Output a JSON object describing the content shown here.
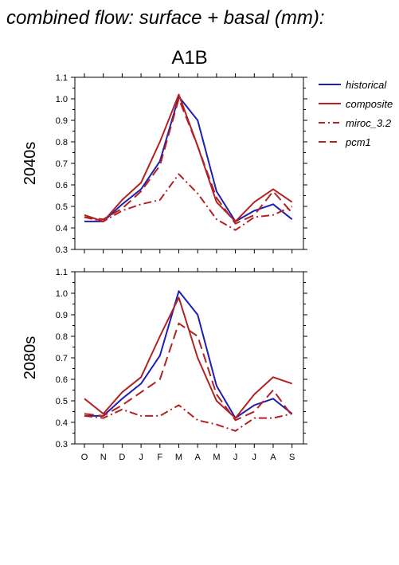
{
  "title": "combined flow: surface + basal (mm):",
  "scenario": "A1B",
  "colors": {
    "historical": "#1f1fb4",
    "composite": "#b22222",
    "miroc_3.2": "#b22222",
    "pcm1": "#b22222"
  },
  "legend": [
    {
      "key": "historical",
      "label": "historical",
      "dash": "solid"
    },
    {
      "key": "composite",
      "label": "composite",
      "dash": "solid"
    },
    {
      "key": "miroc_3.2",
      "label": "miroc_3.2",
      "dash": "dashdot"
    },
    {
      "key": "pcm1",
      "label": "pcm1",
      "dash": "dashed"
    }
  ],
  "chart_data": [
    {
      "type": "line",
      "panel": "2040s",
      "categories": [
        "O",
        "N",
        "D",
        "J",
        "F",
        "M",
        "A",
        "M",
        "J",
        "J",
        "A",
        "S"
      ],
      "ylim": [
        0.3,
        1.1
      ],
      "yticks": [
        "0.3",
        "0.4",
        "0.5",
        "0.6",
        "0.7",
        "0.8",
        "0.9",
        "1.0",
        "1.1"
      ],
      "series": [
        {
          "name": "historical",
          "values": [
            0.43,
            0.43,
            0.51,
            0.58,
            0.71,
            1.01,
            0.9,
            0.57,
            0.43,
            0.48,
            0.51,
            0.44
          ]
        },
        {
          "name": "composite",
          "values": [
            0.46,
            0.43,
            0.53,
            0.61,
            0.8,
            1.02,
            0.78,
            0.52,
            0.43,
            0.52,
            0.58,
            0.52
          ]
        },
        {
          "name": "miroc_3.2",
          "values": [
            0.45,
            0.43,
            0.48,
            0.51,
            0.53,
            0.65,
            0.56,
            0.44,
            0.39,
            0.45,
            0.46,
            0.5
          ]
        },
        {
          "name": "pcm1",
          "values": [
            0.45,
            0.44,
            0.49,
            0.57,
            0.69,
            1.0,
            0.78,
            0.54,
            0.42,
            0.46,
            0.57,
            0.47
          ]
        }
      ]
    },
    {
      "type": "line",
      "panel": "2080s",
      "categories": [
        "O",
        "N",
        "D",
        "J",
        "F",
        "M",
        "A",
        "M",
        "J",
        "J",
        "A",
        "S"
      ],
      "ylim": [
        0.3,
        1.1
      ],
      "yticks": [
        "0.3",
        "0.4",
        "0.5",
        "0.6",
        "0.7",
        "0.8",
        "0.9",
        "1.0",
        "1.1"
      ],
      "series": [
        {
          "name": "historical",
          "values": [
            0.43,
            0.43,
            0.51,
            0.58,
            0.71,
            1.01,
            0.9,
            0.57,
            0.42,
            0.48,
            0.51,
            0.44
          ]
        },
        {
          "name": "composite",
          "values": [
            0.51,
            0.44,
            0.54,
            0.61,
            0.8,
            0.98,
            0.7,
            0.5,
            0.42,
            0.53,
            0.61,
            0.58
          ]
        },
        {
          "name": "miroc_3.2",
          "values": [
            0.43,
            0.42,
            0.46,
            0.43,
            0.43,
            0.48,
            0.41,
            0.39,
            0.36,
            0.42,
            0.42,
            0.44
          ]
        },
        {
          "name": "pcm1",
          "values": [
            0.44,
            0.43,
            0.48,
            0.54,
            0.6,
            0.86,
            0.8,
            0.53,
            0.41,
            0.45,
            0.55,
            0.43
          ]
        }
      ]
    }
  ]
}
